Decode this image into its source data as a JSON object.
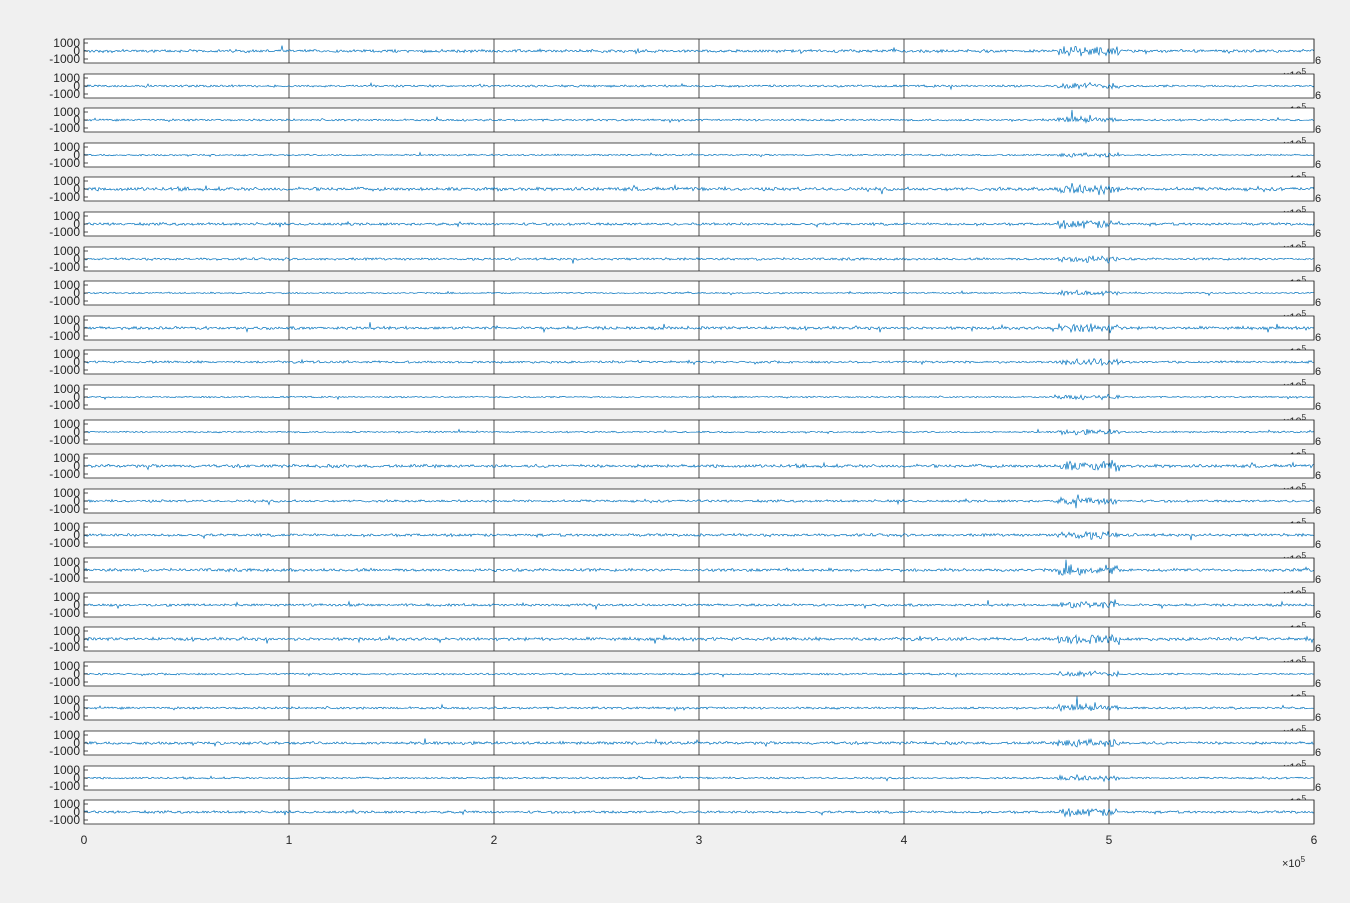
{
  "figure": {
    "background": "#f0f0f0",
    "axes_background": "#ffffff",
    "line_color": "#0072bd",
    "grid_color": "#262626"
  },
  "chart_data": {
    "type": "line",
    "layout": "stacked subplots, shared x-axis",
    "n_channels": 23,
    "xlim": [
      0,
      600000
    ],
    "ylim": [
      -1500,
      1500
    ],
    "x_tick_values": [
      0,
      100000,
      200000,
      300000,
      400000,
      500000,
      600000
    ],
    "x_tick_labels": [
      "0",
      "1",
      "2",
      "3",
      "4",
      "5",
      "6"
    ],
    "x_exponent_label": "×10",
    "x_exponent_power": "5",
    "y_tick_values": [
      1000,
      0,
      -1000
    ],
    "y_tick_labels": [
      "1000",
      "0",
      "-1000"
    ],
    "xgrid": true,
    "ygrid": false,
    "title": "",
    "xlabel": "",
    "ylabel": "",
    "series_note": "23 EEG-like signal traces; all show a high-amplitude burst between x≈480000 and x≈500000",
    "burst_region": [
      480000,
      500000
    ],
    "channel_amplitudes": [
      220,
      160,
      150,
      120,
      260,
      200,
      180,
      110,
      230,
      170,
      110,
      120,
      240,
      180,
      210,
      230,
      190,
      240,
      140,
      170,
      220,
      140,
      190
    ]
  }
}
